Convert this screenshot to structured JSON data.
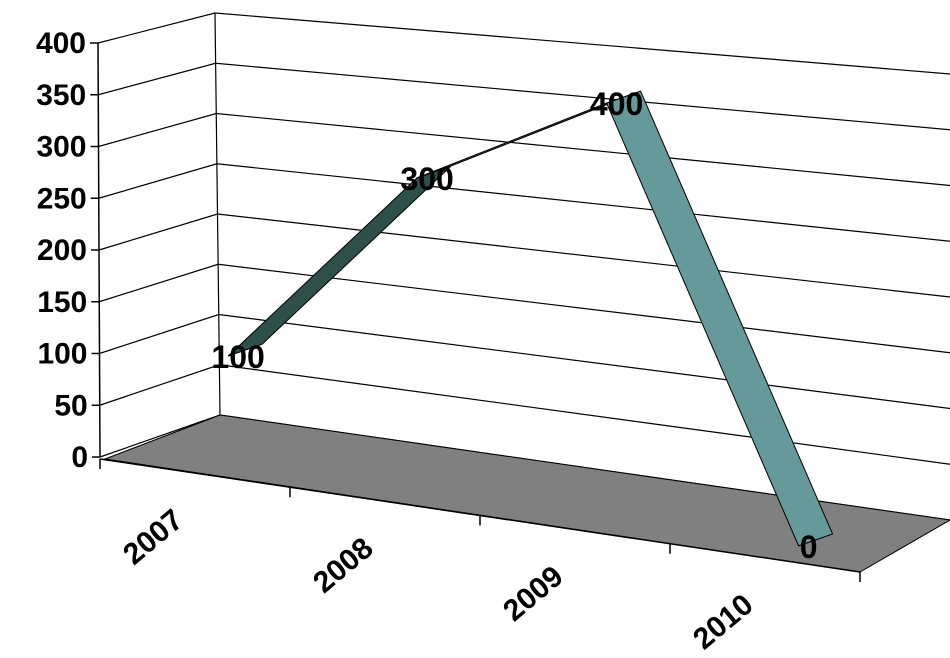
{
  "chart_data": {
    "type": "line",
    "style": "3d-ribbon",
    "categories": [
      "2007",
      "2008",
      "2009",
      "2010"
    ],
    "values": [
      100,
      300,
      400,
      0
    ],
    "data_labels": [
      "100",
      "300",
      "400",
      "0"
    ],
    "ylim": [
      0,
      400
    ],
    "yticks": [
      0,
      50,
      100,
      150,
      200,
      250,
      300,
      350,
      400
    ],
    "ytick_labels": [
      "0",
      "50",
      "100",
      "150",
      "200",
      "250",
      "300",
      "350",
      "400"
    ],
    "grid": true,
    "legend": "none",
    "title": "",
    "xlabel": "",
    "ylabel": "",
    "colors": {
      "floor": "#808080",
      "ribbon_rising": "#2f4f4a",
      "ribbon_falling": "#669999",
      "grid": "#000000"
    }
  }
}
